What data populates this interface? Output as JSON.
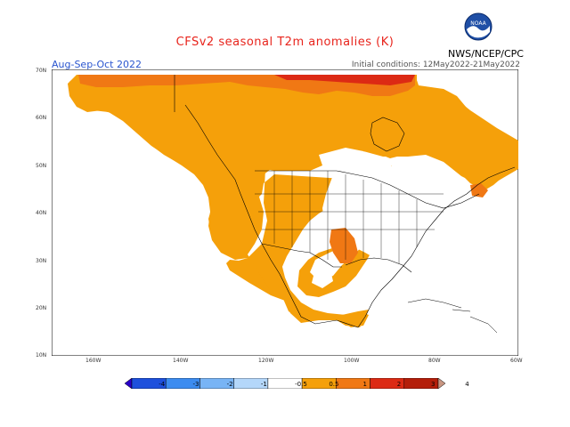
{
  "title": "CFSv2 seasonal T2m anomalies (K)",
  "agency": "NWS/NCEP/CPC",
  "logo_text": "NOAA",
  "season": "Aug-Sep-Oct 2022",
  "initial_conditions": "Initial conditions: 12May2022-21May2022",
  "lat_labels": [
    "70N",
    "60N",
    "50N",
    "40N",
    "30N",
    "20N",
    "10N"
  ],
  "lon_labels": [
    "160W",
    "140W",
    "120W",
    "100W",
    "80W",
    "60W"
  ],
  "colorbar_labels": [
    "-4",
    "-3",
    "-2",
    "-1",
    "-0.5",
    "0.5",
    "1",
    "2",
    "3",
    "4"
  ],
  "colorbar_colors": [
    "#2a00c8",
    "#1e50dc",
    "#3c8cf0",
    "#78b4f5",
    "#b4d7fa",
    "#ffffff",
    "#f5a00a",
    "#f07814",
    "#dc2a14",
    "#b41e0a",
    "#c89682"
  ],
  "legend_colors": {
    "anomaly_0.5_1": "#f5a00a",
    "anomaly_1_2": "#f07814",
    "anomaly_2_3": "#dc2a14",
    "anomaly_3_4": "#b41e0a",
    "neutral": "#ffffff",
    "title": "#e8241c",
    "season": "#2a55cf"
  }
}
